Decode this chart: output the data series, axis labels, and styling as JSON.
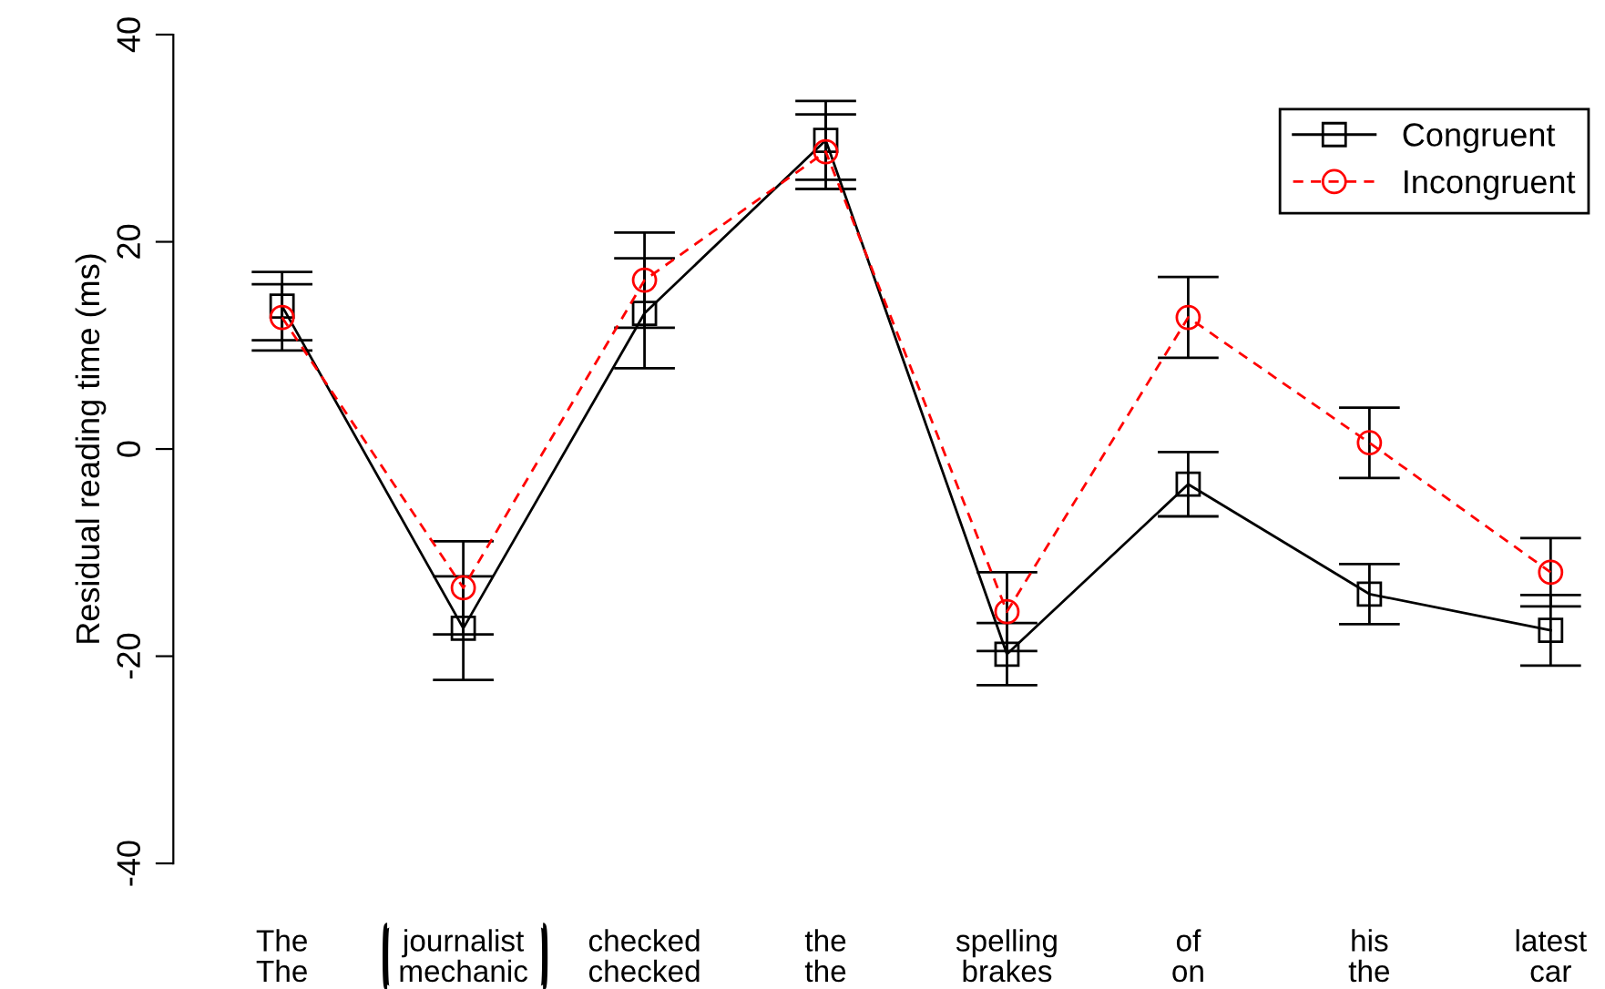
{
  "chart_data": {
    "type": "line",
    "ylabel": "Residual reading time (ms)",
    "categories": [
      "The\nThe",
      "journalist\nmechanic",
      "checked\nchecked",
      "the\nthe",
      "spelling\nbrakes",
      "of\non",
      "his\nthe",
      "latest\ncar"
    ],
    "series": [
      {
        "name": "Congruent",
        "color": "#000000",
        "marker": "square",
        "line_style": "solid",
        "values": [
          13.8,
          -17.3,
          13.1,
          29.8,
          -19.8,
          -3.4,
          -14.0,
          -17.5
        ],
        "errors": [
          3.3,
          5.0,
          5.3,
          3.8,
          3.0,
          3.1,
          2.9,
          3.4
        ]
      },
      {
        "name": "Incongruent",
        "color": "#ff0000",
        "marker": "circle",
        "line_style": "dashed",
        "values": [
          12.7,
          -13.4,
          16.3,
          28.7,
          -15.7,
          12.7,
          0.6,
          -11.9
        ],
        "errors": [
          3.2,
          4.5,
          4.6,
          3.6,
          3.8,
          3.9,
          3.4,
          3.3
        ]
      }
    ],
    "ylim": [
      -40,
      40
    ],
    "yticks": [
      -40,
      -20,
      0,
      20,
      40
    ],
    "legend": "top right",
    "grid": false
  }
}
